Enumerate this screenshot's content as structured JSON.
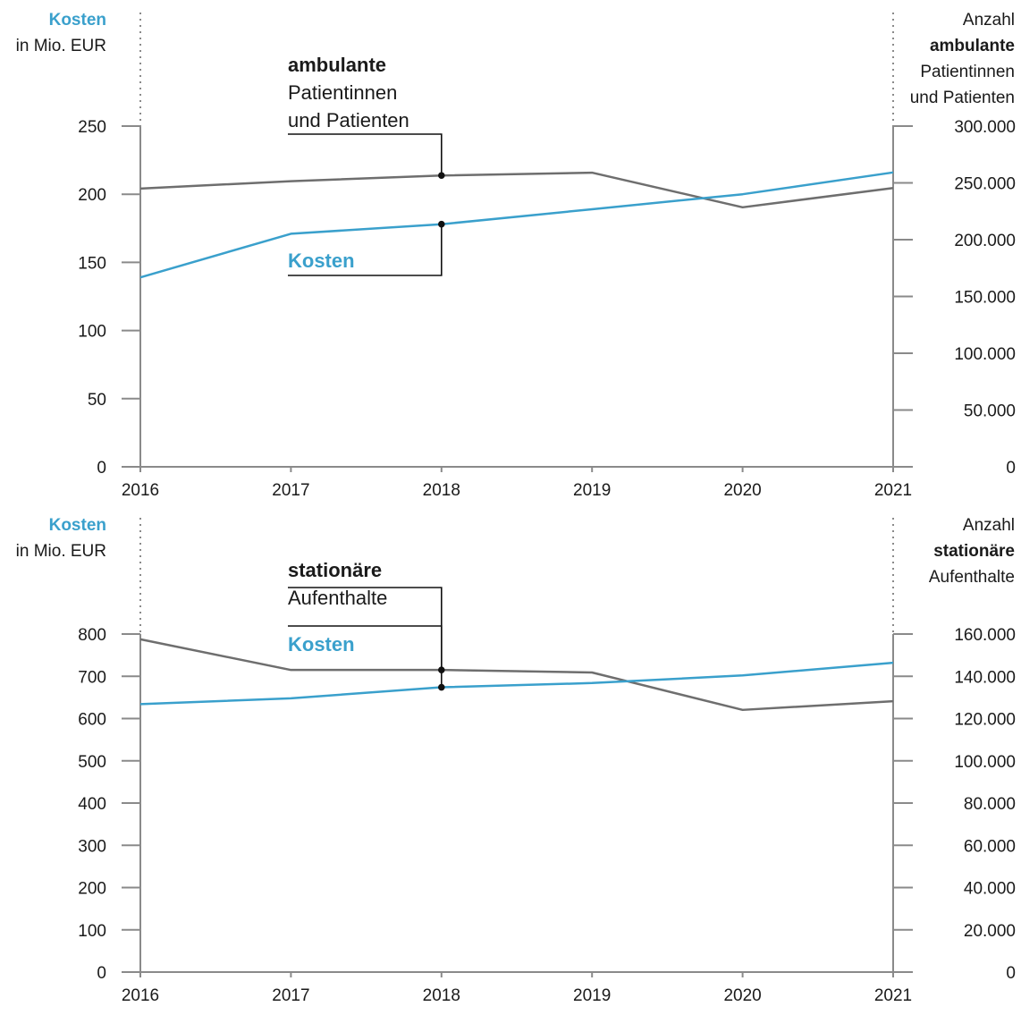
{
  "charts": [
    {
      "left_header": {
        "line1": "Kosten",
        "line2": "in Mio. EUR"
      },
      "right_header": [
        "Anzahl",
        "ambulante",
        "Patientinnen",
        "und Patienten"
      ],
      "annotation": {
        "bold": "ambulante",
        "lines": [
          "Patientinnen",
          "und Patienten"
        ]
      },
      "cost_label": "Kosten"
    },
    {
      "left_header": {
        "line1": "Kosten",
        "line2": "in Mio. EUR"
      },
      "right_header": [
        "Anzahl",
        "stationäre",
        "Aufenthalte"
      ],
      "annotation": {
        "bold": "stationäre",
        "lines": [
          "Aufenthalte"
        ]
      },
      "cost_label": "Kosten"
    }
  ],
  "colors": {
    "kosten": "#3aa0cc",
    "anzahl": "#6e6e6e",
    "axis": "#8a8a8a",
    "pointer": "#111111"
  },
  "chart_data": [
    {
      "type": "line",
      "x": [
        "2016",
        "2017",
        "2018",
        "2019",
        "2020",
        "2021"
      ],
      "y_left": {
        "label": "Kosten in Mio. EUR",
        "ticks": [
          "0",
          "50",
          "100",
          "150",
          "200",
          "250"
        ],
        "ylim": [
          0,
          250
        ]
      },
      "y_right": {
        "label": "Anzahl ambulante Patientinnen und Patienten",
        "ticks": [
          "0",
          "50.000",
          "100.000",
          "150.000",
          "200.000",
          "250.000",
          "300.000"
        ],
        "ylim": [
          0,
          300000
        ]
      },
      "series": [
        {
          "name": "Kosten",
          "axis": "left",
          "values": [
            139,
            171,
            178,
            189,
            200,
            216
          ]
        },
        {
          "name": "ambulante Patientinnen und Patienten",
          "axis": "right",
          "values": [
            245000,
            251500,
            256500,
            259000,
            228500,
            245500
          ]
        }
      ],
      "highlight_x": "2018",
      "grid": false
    },
    {
      "type": "line",
      "x": [
        "2016",
        "2017",
        "2018",
        "2019",
        "2020",
        "2021"
      ],
      "y_left": {
        "label": "Kosten in Mio. EUR",
        "ticks": [
          "0",
          "100",
          "200",
          "300",
          "400",
          "500",
          "600",
          "700",
          "800"
        ],
        "ylim": [
          0,
          800
        ]
      },
      "y_right": {
        "label": "Anzahl stationäre Aufenthalte",
        "ticks": [
          "0",
          "20.000",
          "40.000",
          "60.000",
          "80.000",
          "100.000",
          "120.000",
          "140.000",
          "160.000"
        ],
        "ylim": [
          0,
          160000
        ]
      },
      "series": [
        {
          "name": "Kosten",
          "axis": "left",
          "values": [
            634,
            648,
            674,
            684,
            702,
            732
          ]
        },
        {
          "name": "stationäre Aufenthalte",
          "axis": "right",
          "values": [
            157500,
            143000,
            143000,
            141800,
            124100,
            128200
          ]
        }
      ],
      "highlight_x": "2018",
      "grid": false
    }
  ]
}
